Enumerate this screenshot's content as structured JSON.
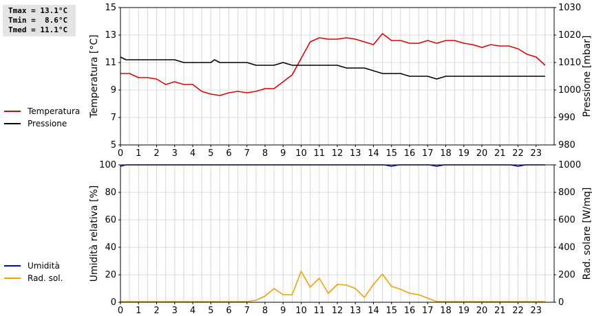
{
  "stats": {
    "tmax": "Tmax = 13.1°C",
    "tmin": "Tmin =  8.6°C",
    "tmed": "Tmed = 11.1°C"
  },
  "legend_top": [
    {
      "label": "Temperatura",
      "color": "#e00000"
    },
    {
      "label": "Pressione",
      "color": "#000000"
    }
  ],
  "legend_bottom": [
    {
      "label": "Umidità",
      "color": "#0000c8"
    },
    {
      "label": "Rad. sol.",
      "color": "#f0a000"
    }
  ],
  "chart_data": [
    {
      "type": "line",
      "xlim": [
        0,
        24
      ],
      "x_ticks": [
        "0",
        "1",
        "2",
        "3",
        "4",
        "5",
        "6",
        "7",
        "8",
        "9",
        "10",
        "11",
        "12",
        "13",
        "14",
        "15",
        "16",
        "17",
        "18",
        "19",
        "20",
        "21",
        "22",
        "23"
      ],
      "ylabel_left": "Temperatura [°C]",
      "ylabel_right": "Pressione [mbar]",
      "ylim_left": [
        5,
        15
      ],
      "ylim_right": [
        980,
        1030
      ],
      "y_ticks_left": [
        "5",
        "7",
        "9",
        "11",
        "13",
        "15"
      ],
      "y_ticks_right": [
        "980",
        "990",
        "1000",
        "1010",
        "1020",
        "1030"
      ],
      "grid": true,
      "series": [
        {
          "name": "Temperatura",
          "axis": "left",
          "color": "#e00000",
          "x": [
            0,
            0.5,
            1,
            1.5,
            2,
            2.5,
            3,
            3.5,
            4,
            4.5,
            5,
            5.5,
            6,
            6.5,
            7,
            7.5,
            8,
            8.5,
            9,
            9.5,
            10,
            10.5,
            11,
            11.5,
            12,
            12.5,
            13,
            13.5,
            14,
            14.5,
            15,
            15.5,
            16,
            16.5,
            17,
            17.5,
            18,
            18.5,
            19,
            19.5,
            20,
            20.5,
            21,
            21.5,
            22,
            22.5,
            23,
            23.5
          ],
          "values": [
            10.2,
            10.2,
            9.9,
            9.9,
            9.8,
            9.4,
            9.6,
            9.4,
            9.4,
            8.9,
            8.7,
            8.6,
            8.8,
            8.9,
            8.8,
            8.9,
            9.1,
            9.1,
            9.6,
            10.1,
            11.3,
            12.5,
            12.8,
            12.7,
            12.7,
            12.8,
            12.7,
            12.5,
            12.3,
            13.1,
            12.6,
            12.6,
            12.4,
            12.4,
            12.6,
            12.4,
            12.6,
            12.6,
            12.4,
            12.3,
            12.1,
            12.3,
            12.2,
            12.2,
            12.0,
            11.6,
            11.4,
            10.8
          ]
        },
        {
          "name": "Pressione",
          "axis": "right",
          "color": "#000000",
          "x": [
            0,
            0.3,
            0.5,
            1,
            1.5,
            2,
            2.5,
            3,
            3.5,
            4,
            4.5,
            5,
            5.2,
            5.5,
            6,
            6.5,
            7,
            7.5,
            8,
            8.5,
            9,
            9.5,
            10,
            10.5,
            11,
            11.5,
            12,
            12.5,
            13,
            13.5,
            14,
            14.5,
            15,
            15.5,
            16,
            16.5,
            17,
            17.5,
            18,
            18.5,
            19,
            19.5,
            20,
            20.5,
            21,
            21.5,
            22,
            22.5,
            23,
            23.5
          ],
          "values": [
            1012,
            1011,
            1011,
            1011,
            1011,
            1011,
            1011,
            1011,
            1010,
            1010,
            1010,
            1010,
            1011,
            1010,
            1010,
            1010,
            1010,
            1009,
            1009,
            1009,
            1010,
            1009,
            1009,
            1009,
            1009,
            1009,
            1009,
            1008,
            1008,
            1008,
            1007,
            1006,
            1006,
            1006,
            1005,
            1005,
            1005,
            1004,
            1005,
            1005,
            1005,
            1005,
            1005,
            1005,
            1005,
            1005,
            1005,
            1005,
            1005,
            1005
          ]
        }
      ]
    },
    {
      "type": "line",
      "xlim": [
        0,
        24
      ],
      "x_ticks": [
        "0",
        "1",
        "2",
        "3",
        "4",
        "5",
        "6",
        "7",
        "8",
        "9",
        "10",
        "11",
        "12",
        "13",
        "14",
        "15",
        "16",
        "17",
        "18",
        "19",
        "20",
        "21",
        "22",
        "23"
      ],
      "ylabel_left": "Umidità relativa [%]",
      "ylabel_right": "Rad. solare [W/mq]",
      "ylim_left": [
        0,
        100
      ],
      "ylim_right": [
        0,
        1000
      ],
      "y_ticks_left": [
        "0",
        "20",
        "40",
        "60",
        "80",
        "100"
      ],
      "y_ticks_right": [
        "0",
        "200",
        "400",
        "600",
        "800",
        "1000"
      ],
      "grid": true,
      "series": [
        {
          "name": "Umidità",
          "axis": "left",
          "color": "#0000c8",
          "x": [
            0,
            0.3,
            14.6,
            15,
            15.4,
            17.1,
            17.5,
            17.9,
            21.6,
            22,
            22.4,
            23.5
          ],
          "values": [
            99,
            100,
            100,
            99,
            100,
            100,
            99,
            100,
            100,
            99,
            100,
            100
          ]
        },
        {
          "name": "Rad. sol.",
          "axis": "right",
          "color": "#f0a000",
          "x": [
            0,
            7,
            7.5,
            8,
            8.5,
            9,
            9.5,
            10,
            10.5,
            11,
            11.5,
            12,
            12.5,
            13,
            13.5,
            14,
            14.5,
            15,
            15.5,
            16,
            16.5,
            17,
            17.5,
            18,
            23.5
          ],
          "values": [
            5,
            5,
            15,
            45,
            100,
            55,
            55,
            225,
            110,
            175,
            65,
            130,
            125,
            100,
            35,
            130,
            205,
            115,
            95,
            65,
            55,
            30,
            5,
            5,
            5
          ]
        }
      ]
    }
  ]
}
